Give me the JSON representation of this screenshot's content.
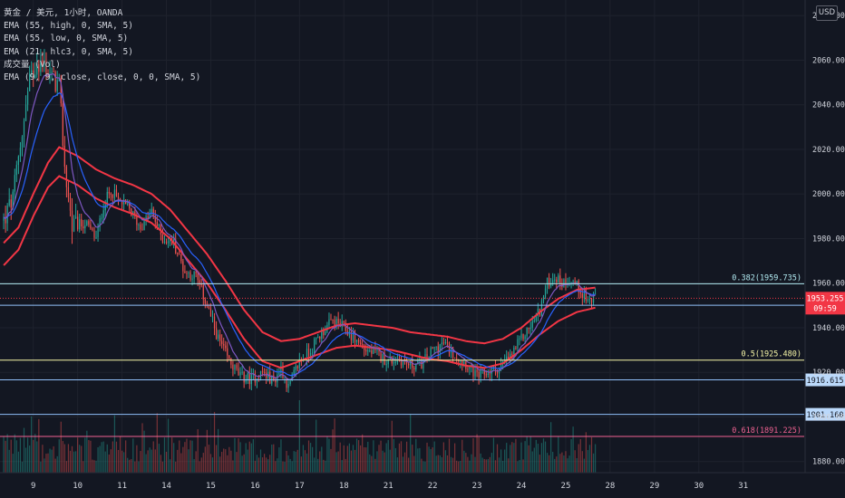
{
  "legend": {
    "symbol": "黄金 / 美元, 1小时, OANDA",
    "lines": [
      "EMA (55, high, 0, SMA, 5)",
      "EMA (55, low, 0, SMA, 5)",
      "EMA (21, hlc3, 0, SMA, 5)",
      "成交量 (Vol)",
      "EMA (9, 9, close, close, 0, 0, SMA, 5)"
    ]
  },
  "currency": "USD",
  "colors": {
    "background": "#131722",
    "grid": "#1e222d",
    "up": "#26a69a",
    "down": "#ef5350",
    "ema_red": "#f23645",
    "ema_blue": "#2962ff",
    "fib_382": "#b2ebf2",
    "fib_5": "#f7f7a8",
    "fib_618": "#f06292",
    "hline_blue": "#90bff9",
    "last_price_bg": "#f23645",
    "text": "#d1d4dc"
  },
  "chart_data": {
    "type": "candlestick",
    "ylim": [
      1875,
      2087
    ],
    "y_ticks": [
      1880,
      1900,
      1920,
      1940,
      1960,
      1980,
      2000,
      2020,
      2040,
      2060,
      2080
    ],
    "y_tick_labels": [
      "1880.000",
      "1900.000",
      "1920.000",
      "1940.000",
      "1960.000",
      "1980.000",
      "2000.000",
      "2020.000",
      "2040.000",
      "2060.000",
      "2080.000"
    ],
    "x_ticks": [
      9,
      10,
      11,
      14,
      15,
      16,
      17,
      18,
      21,
      22,
      23,
      24,
      25,
      28,
      29,
      30,
      31
    ],
    "x_ticks_bar_index": [
      16,
      40,
      64,
      88,
      112,
      136,
      160,
      184,
      208,
      232,
      256,
      280,
      304,
      328,
      352,
      376,
      400
    ],
    "x_range_bar_index": [
      -2,
      433
    ],
    "price_anchors": [
      [
        0,
        1988
      ],
      [
        5,
        1998
      ],
      [
        10,
        2028
      ],
      [
        14,
        2050
      ],
      [
        18,
        2060
      ],
      [
        22,
        2058
      ],
      [
        26,
        2052
      ],
      [
        30,
        2048
      ],
      [
        33,
        2012
      ],
      [
        37,
        1985
      ],
      [
        44,
        1987
      ],
      [
        50,
        1980
      ],
      [
        54,
        1995
      ],
      [
        58,
        2002
      ],
      [
        62,
        1997
      ],
      [
        68,
        1993
      ],
      [
        74,
        1985
      ],
      [
        80,
        1992
      ],
      [
        86,
        1980
      ],
      [
        92,
        1978
      ],
      [
        98,
        1965
      ],
      [
        104,
        1963
      ],
      [
        110,
        1950
      ],
      [
        116,
        1935
      ],
      [
        122,
        1925
      ],
      [
        128,
        1918
      ],
      [
        134,
        1917
      ],
      [
        140,
        1920
      ],
      [
        146,
        1916
      ],
      [
        150,
        1922
      ],
      [
        154,
        1913
      ],
      [
        160,
        1925
      ],
      [
        166,
        1930
      ],
      [
        172,
        1938
      ],
      [
        178,
        1943
      ],
      [
        184,
        1940
      ],
      [
        190,
        1935
      ],
      [
        196,
        1930
      ],
      [
        202,
        1928
      ],
      [
        208,
        1925
      ],
      [
        214,
        1926
      ],
      [
        220,
        1923
      ],
      [
        226,
        1924
      ],
      [
        232,
        1930
      ],
      [
        238,
        1933
      ],
      [
        244,
        1928
      ],
      [
        250,
        1924
      ],
      [
        256,
        1918
      ],
      [
        262,
        1920
      ],
      [
        268,
        1922
      ],
      [
        274,
        1927
      ],
      [
        280,
        1935
      ],
      [
        286,
        1942
      ],
      [
        290,
        1948
      ],
      [
        294,
        1960
      ],
      [
        298,
        1963
      ],
      [
        302,
        1960
      ],
      [
        306,
        1962
      ],
      [
        312,
        1957
      ],
      [
        316,
        1952
      ],
      [
        320,
        1953
      ]
    ],
    "ema_high_anchors": [
      [
        0,
        1978
      ],
      [
        8,
        1985
      ],
      [
        16,
        2000
      ],
      [
        24,
        2014
      ],
      [
        30,
        2021
      ],
      [
        40,
        2017
      ],
      [
        50,
        2011
      ],
      [
        60,
        2007
      ],
      [
        70,
        2004
      ],
      [
        80,
        2000
      ],
      [
        90,
        1993
      ],
      [
        100,
        1983
      ],
      [
        110,
        1973
      ],
      [
        120,
        1961
      ],
      [
        130,
        1948
      ],
      [
        140,
        1938
      ],
      [
        150,
        1934
      ],
      [
        160,
        1935
      ],
      [
        170,
        1938
      ],
      [
        180,
        1941
      ],
      [
        190,
        1942
      ],
      [
        200,
        1941
      ],
      [
        210,
        1940
      ],
      [
        220,
        1938
      ],
      [
        230,
        1937
      ],
      [
        240,
        1936
      ],
      [
        250,
        1934
      ],
      [
        260,
        1933
      ],
      [
        270,
        1935
      ],
      [
        280,
        1940
      ],
      [
        290,
        1947
      ],
      [
        300,
        1953
      ],
      [
        310,
        1957
      ],
      [
        320,
        1958
      ]
    ],
    "ema_low_anchors": [
      [
        0,
        1968
      ],
      [
        8,
        1975
      ],
      [
        16,
        1990
      ],
      [
        24,
        2003
      ],
      [
        30,
        2008
      ],
      [
        40,
        2004
      ],
      [
        50,
        1998
      ],
      [
        60,
        1994
      ],
      [
        70,
        1991
      ],
      [
        80,
        1987
      ],
      [
        90,
        1980
      ],
      [
        100,
        1970
      ],
      [
        110,
        1960
      ],
      [
        120,
        1948
      ],
      [
        130,
        1935
      ],
      [
        140,
        1925
      ],
      [
        150,
        1922
      ],
      [
        160,
        1925
      ],
      [
        170,
        1928
      ],
      [
        180,
        1931
      ],
      [
        190,
        1932
      ],
      [
        200,
        1931
      ],
      [
        210,
        1930
      ],
      [
        220,
        1928
      ],
      [
        230,
        1926
      ],
      [
        240,
        1925
      ],
      [
        250,
        1923
      ],
      [
        260,
        1922
      ],
      [
        270,
        1924
      ],
      [
        280,
        1930
      ],
      [
        290,
        1937
      ],
      [
        300,
        1943
      ],
      [
        310,
        1947
      ],
      [
        320,
        1949
      ]
    ],
    "volume_max": 1,
    "horizontal_levels": [
      {
        "price": 1959.735,
        "label": "0.382(1959.735)",
        "kind": "fib_382"
      },
      {
        "price": 1925.48,
        "label": "0.5(1925.480)",
        "kind": "fib_5"
      },
      {
        "price": 1891.225,
        "label": "0.618(1891.225)",
        "kind": "fib_618"
      },
      {
        "price": 1950.076,
        "label": "1950.076",
        "kind": "hline_blue"
      },
      {
        "price": 1916.615,
        "label": "1916.615",
        "kind": "hline_blue"
      },
      {
        "price": 1901.16,
        "label": "1901.160",
        "kind": "hline_blue"
      }
    ],
    "last_price": {
      "value": "1953.255",
      "price": 1953.255,
      "countdown": "09:59"
    },
    "grid": true
  }
}
